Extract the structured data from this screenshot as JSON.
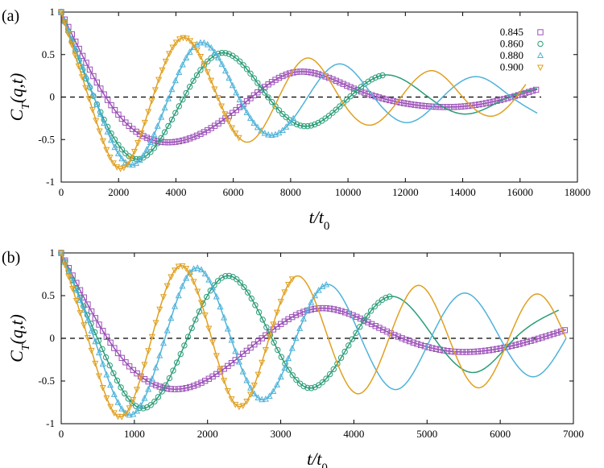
{
  "chart_data": [
    {
      "type": "line",
      "panel_label": "(a)",
      "xlabel": "t/t0",
      "ylabel": "C_T(q,t)",
      "xlim": [
        0,
        18000
      ],
      "ylim": [
        -1,
        1
      ],
      "xticks": [
        0,
        2000,
        4000,
        6000,
        8000,
        10000,
        12000,
        14000,
        16000,
        18000
      ],
      "yticks": [
        -1,
        -0.5,
        0,
        0.5,
        1
      ],
      "grid": false,
      "reference_line": {
        "y": 0,
        "style": "dashed"
      },
      "legend_position": "top-right",
      "series": [
        {
          "name": "0.845",
          "color": "#9b4fb8",
          "marker": "square",
          "data_xmax": 16600,
          "x": [
            0,
            2000,
            3900,
            6000,
            8100,
            10200,
            12300,
            14300,
            16600
          ],
          "y": [
            1,
            -0.21,
            -0.53,
            -0.18,
            0.29,
            0.1,
            -0.09,
            -0.1,
            0.09
          ]
        },
        {
          "name": "0.860",
          "color": "#2a9d78",
          "marker": "circle",
          "data_xmax": 11300,
          "x": [
            0,
            1400,
            2700,
            4200,
            5600,
            7100,
            8400,
            9900,
            11300,
            12800,
            14100,
            15600,
            16600
          ],
          "y": [
            1,
            -0.2,
            -0.73,
            -0.05,
            0.52,
            0.05,
            -0.34,
            -0.05,
            0.26,
            0.0,
            -0.2,
            0.0,
            0.1
          ]
        },
        {
          "name": "0.880",
          "color": "#4fb3d9",
          "marker": "triangle-up",
          "data_xmax": 8100,
          "x": [
            0,
            1200,
            2450,
            3700,
            4900,
            6100,
            7300,
            8500,
            9700,
            10900,
            12100,
            13300,
            14500,
            15700,
            16600
          ],
          "y": [
            1,
            -0.05,
            -0.8,
            -0.05,
            0.64,
            0.05,
            -0.45,
            -0.05,
            0.39,
            0.0,
            -0.3,
            0.0,
            0.24,
            0.0,
            -0.19
          ]
        },
        {
          "name": "0.900",
          "color": "#e0a020",
          "marker": "triangle-down",
          "data_xmax": 6300,
          "x": [
            0,
            1050,
            2100,
            3150,
            4250,
            5400,
            6450,
            7550,
            8600,
            9700,
            10800,
            11850,
            12950,
            14000,
            15100,
            16200
          ],
          "y": [
            1,
            -0.1,
            -0.84,
            -0.05,
            0.7,
            0.05,
            -0.53,
            -0.03,
            0.46,
            0.0,
            -0.33,
            0.0,
            0.31,
            0.0,
            -0.22,
            0.15
          ]
        }
      ]
    },
    {
      "type": "line",
      "panel_label": "(b)",
      "xlabel": "t/t0",
      "ylabel": "C_T(q,t)",
      "xlim": [
        0,
        7000
      ],
      "ylim": [
        -1,
        1
      ],
      "xticks": [
        0,
        1000,
        2000,
        3000,
        4000,
        5000,
        6000,
        7000
      ],
      "yticks": [
        -1,
        -0.5,
        0,
        0.5,
        1
      ],
      "grid": false,
      "reference_line": {
        "y": 0,
        "style": "dashed"
      },
      "series": [
        {
          "name": "0.845",
          "color": "#9b4fb8",
          "marker": "square",
          "data_xmax": 6900,
          "x": [
            0,
            800,
            1720,
            2600,
            3500,
            4400,
            5300,
            6100,
            6900
          ],
          "y": [
            1,
            -0.2,
            -0.58,
            -0.1,
            0.35,
            0.1,
            -0.15,
            -0.1,
            0.1
          ]
        },
        {
          "name": "0.860",
          "color": "#2a9d78",
          "marker": "circle",
          "data_xmax": 4500,
          "x": [
            0,
            600,
            1100,
            1700,
            2250,
            2850,
            3370,
            3950,
            4500,
            5100,
            5650,
            6200,
            6800
          ],
          "y": [
            1,
            -0.2,
            -0.82,
            -0.05,
            0.73,
            0.05,
            -0.58,
            -0.05,
            0.49,
            0.0,
            -0.4,
            0.0,
            0.33
          ]
        },
        {
          "name": "0.880",
          "color": "#4fb3d9",
          "marker": "triangle-up",
          "data_xmax": 3650,
          "x": [
            0,
            470,
            940,
            1400,
            1830,
            2300,
            2760,
            3200,
            3650,
            4100,
            4580,
            5050,
            5520,
            6000,
            6460,
            6900
          ],
          "y": [
            1,
            -0.05,
            -0.9,
            -0.05,
            0.82,
            0.05,
            -0.72,
            -0.02,
            0.63,
            0.0,
            -0.6,
            0.0,
            0.53,
            0.0,
            -0.45,
            0.0
          ]
        },
        {
          "name": "0.900",
          "color": "#e0a020",
          "marker": "triangle-down",
          "data_xmax": 3200,
          "x": [
            0,
            400,
            800,
            1220,
            1620,
            2040,
            2430,
            2840,
            3220,
            3650,
            4060,
            4480,
            4880,
            5300,
            5700,
            6120,
            6500,
            6900
          ],
          "y": [
            1,
            -0.1,
            -0.92,
            -0.05,
            0.85,
            0.05,
            -0.8,
            0.0,
            0.73,
            0.0,
            -0.65,
            0.0,
            0.62,
            0.0,
            -0.58,
            0.0,
            0.52,
            0.0
          ]
        }
      ]
    }
  ]
}
